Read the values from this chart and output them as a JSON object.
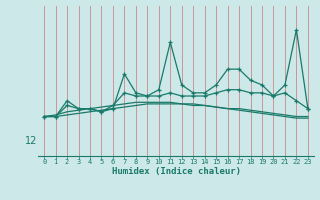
{
  "xlabel": "Humidex (Indice chaleur)",
  "background_color": "#cce8e8",
  "grid_color": "#aacccc",
  "line_color": "#1a7a6a",
  "x_ticks": [
    0,
    1,
    2,
    3,
    4,
    5,
    6,
    7,
    8,
    9,
    10,
    11,
    12,
    13,
    14,
    15,
    16,
    17,
    18,
    19,
    20,
    21,
    22,
    23
  ],
  "y_tick_val": 12,
  "series_with_markers": [
    [
      13.5,
      13.5,
      14.5,
      14.0,
      14.0,
      13.8,
      14.0,
      16.2,
      15.0,
      14.8,
      15.2,
      18.2,
      15.5,
      15.0,
      15.0,
      15.5,
      16.5,
      16.5,
      15.8,
      15.5,
      14.8,
      15.5,
      19.0,
      14.0
    ],
    [
      13.5,
      13.5,
      14.2,
      14.0,
      14.0,
      13.8,
      14.2,
      15.0,
      14.8,
      14.8,
      14.8,
      15.0,
      14.8,
      14.8,
      14.8,
      15.0,
      15.2,
      15.2,
      15.0,
      15.0,
      14.8,
      15.0,
      14.5,
      14.0
    ]
  ],
  "series_smooth": [
    [
      13.5,
      13.6,
      13.8,
      13.9,
      14.0,
      14.1,
      14.2,
      14.3,
      14.4,
      14.4,
      14.4,
      14.4,
      14.3,
      14.3,
      14.2,
      14.1,
      14.0,
      13.9,
      13.8,
      13.7,
      13.6,
      13.5,
      13.4,
      13.4
    ],
    [
      13.5,
      13.5,
      13.6,
      13.7,
      13.8,
      13.9,
      14.0,
      14.1,
      14.2,
      14.3,
      14.3,
      14.3,
      14.3,
      14.2,
      14.2,
      14.1,
      14.0,
      14.0,
      13.9,
      13.8,
      13.7,
      13.6,
      13.5,
      13.5
    ]
  ],
  "ylim": [
    11.0,
    20.5
  ],
  "xlim": [
    -0.5,
    23.5
  ]
}
